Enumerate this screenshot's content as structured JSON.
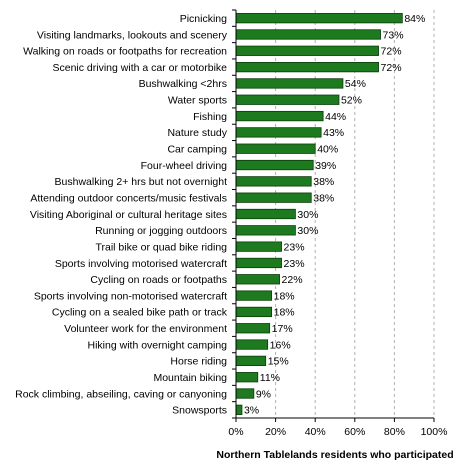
{
  "chart_data": {
    "type": "bar",
    "orientation": "horizontal",
    "categories": [
      "Picnicking",
      "Visiting landmarks, lookouts and scenery",
      "Walking on roads or footpaths for recreation",
      "Scenic driving with a car or motorbike",
      "Bushwalking <2hrs",
      "Water sports",
      "Fishing",
      "Nature study",
      "Car camping",
      "Four-wheel driving",
      "Bushwalking 2+ hrs but not overnight",
      "Attending outdoor concerts/music festivals",
      "Visiting Aboriginal or cultural heritage sites",
      "Running or jogging outdoors",
      "Trail bike or quad bike riding",
      "Sports involving motorised watercraft",
      "Cycling on roads or footpaths",
      "Sports involving non-motorised watercraft",
      "Cycling on a sealed bike path or track",
      "Volunteer work for the environment",
      "Hiking with overnight camping",
      "Horse riding",
      "Mountain biking",
      "Rock climbing, abseiling, caving or canyoning",
      "Snowsports"
    ],
    "values": [
      84,
      73,
      72,
      72,
      54,
      52,
      44,
      43,
      40,
      39,
      38,
      38,
      30,
      30,
      23,
      23,
      22,
      18,
      18,
      17,
      16,
      15,
      11,
      9,
      3
    ],
    "value_labels": [
      "84%",
      "73%",
      "72%",
      "72%",
      "54%",
      "52%",
      "44%",
      "43%",
      "40%",
      "39%",
      "38%",
      "38%",
      "30%",
      "30%",
      "23%",
      "23%",
      "22%",
      "18%",
      "18%",
      "17%",
      "16%",
      "15%",
      "11%",
      "9%",
      "3%"
    ],
    "xticks": [
      "0%",
      "20%",
      "40%",
      "60%",
      "80%",
      "100%"
    ],
    "xlabel": "Northern Tablelands residents who participated",
    "ylabel": "",
    "title": "",
    "xlim": [
      0,
      100
    ],
    "grid": "vertical dashed",
    "bar_color": "#1e7a1e",
    "bar_border": "#0a3d0a",
    "grid_color": "#b0b0b0"
  }
}
